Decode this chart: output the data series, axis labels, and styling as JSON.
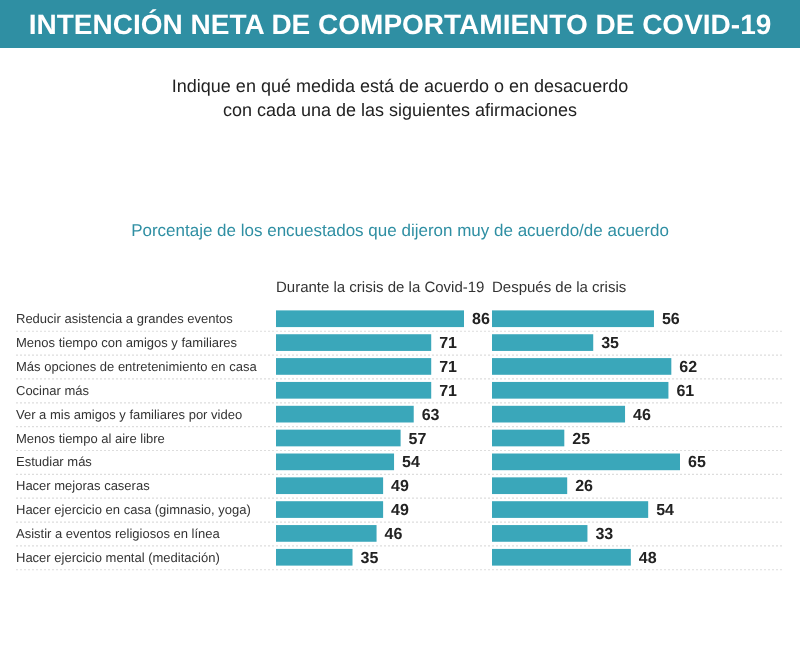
{
  "chart_data": [
    {
      "type": "bar",
      "orientation": "horizontal",
      "title": "INTENCIÓN NETA DE COMPORTAMIENTO DE COVID-19",
      "subtitle": "Indique en qué medida está de acuerdo o en desacuerdo con cada una de las siguientes afirmaciones",
      "xlabel": "Porcentaje de los encuestados que dijeron muy de acuerdo/de acuerdo",
      "categories": [
        "Reducir asistencia a grandes eventos",
        "Menos tiempo con amigos y familiares",
        "Más opciones de entretenimiento en casa",
        "Cocinar más",
        "Ver a mis amigos y familiares por video",
        "Menos tiempo al aire libre",
        "Estudiar más",
        "Hacer mejoras caseras",
        "Hacer ejercicio en casa (gimnasio, yoga)",
        "Asistir a eventos religiosos en línea",
        "Hacer ejercicio mental (meditación)"
      ],
      "series": [
        {
          "name": "Durante la crisis de la Covid-19",
          "color": "#3aa7ba",
          "values": [
            86,
            71,
            71,
            71,
            63,
            57,
            54,
            49,
            49,
            46,
            35
          ]
        }
      ],
      "data_labels": true
    },
    {
      "type": "bar",
      "orientation": "horizontal",
      "categories": [
        null,
        null,
        null,
        null,
        null,
        null,
        null,
        null,
        null,
        null,
        null
      ],
      "series": [
        {
          "name": "Después de la crisis",
          "color": "#3aa7ba",
          "values": [
            56,
            35,
            62,
            61,
            46,
            25,
            65,
            26,
            54,
            33,
            48
          ]
        }
      ],
      "data_labels": true
    }
  ]
}
